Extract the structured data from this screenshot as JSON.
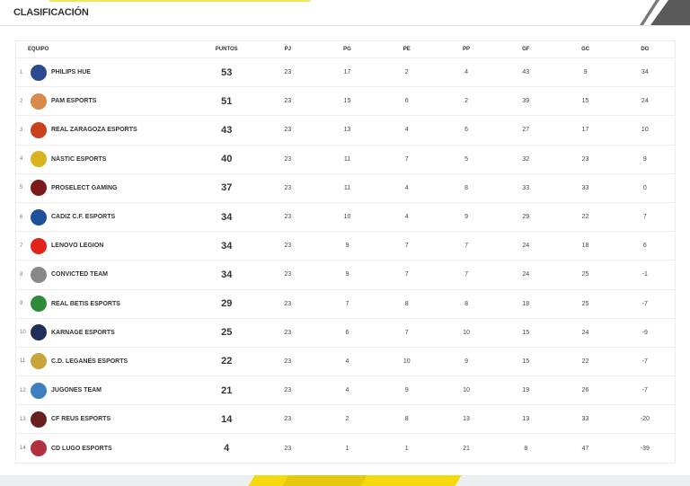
{
  "header": {
    "title": "CLASIFICACIÓN"
  },
  "columns": [
    "EQUIPO",
    "PUNTOS",
    "PJ",
    "PG",
    "PE",
    "PP",
    "GF",
    "GC",
    "DG"
  ],
  "rows": [
    {
      "pos": "1",
      "team": "PHILIPS HUE",
      "pts": "53",
      "pj": "23",
      "pg": "17",
      "pe": "2",
      "pp": "4",
      "gf": "43",
      "gc": "9",
      "dg": "34",
      "color": "#2a4b8d"
    },
    {
      "pos": "2",
      "team": "PAM ESPORTS",
      "pts": "51",
      "pj": "23",
      "pg": "15",
      "pe": "6",
      "pp": "2",
      "gf": "39",
      "gc": "15",
      "dg": "24",
      "color": "#d88a4a"
    },
    {
      "pos": "3",
      "team": "REAL ZARAGOZA ESPORTS",
      "pts": "43",
      "pj": "23",
      "pg": "13",
      "pe": "4",
      "pp": "6",
      "gf": "27",
      "gc": "17",
      "dg": "10",
      "color": "#c8401c"
    },
    {
      "pos": "4",
      "team": "NÀSTIC ESPORTS",
      "pts": "40",
      "pj": "23",
      "pg": "11",
      "pe": "7",
      "pp": "5",
      "gf": "32",
      "gc": "23",
      "dg": "9",
      "color": "#d9b21f"
    },
    {
      "pos": "5",
      "team": "PROSELECT GAMING",
      "pts": "37",
      "pj": "23",
      "pg": "11",
      "pe": "4",
      "pp": "8",
      "gf": "33",
      "gc": "33",
      "dg": "0",
      "color": "#7a1a1a"
    },
    {
      "pos": "6",
      "team": "CADIZ C.F. ESPORTS",
      "pts": "34",
      "pj": "23",
      "pg": "10",
      "pe": "4",
      "pp": "9",
      "gf": "29",
      "gc": "22",
      "dg": "7",
      "color": "#1d4f9a"
    },
    {
      "pos": "7",
      "team": "LENOVO LEGION",
      "pts": "34",
      "pj": "23",
      "pg": "9",
      "pe": "7",
      "pp": "7",
      "gf": "24",
      "gc": "18",
      "dg": "6",
      "color": "#e2231a"
    },
    {
      "pos": "8",
      "team": "CONVICTED TEAM",
      "pts": "34",
      "pj": "23",
      "pg": "9",
      "pe": "7",
      "pp": "7",
      "gf": "24",
      "gc": "25",
      "dg": "-1",
      "color": "#888888"
    },
    {
      "pos": "9",
      "team": "REAL BETIS ESPORTS",
      "pts": "29",
      "pj": "23",
      "pg": "7",
      "pe": "8",
      "pp": "8",
      "gf": "18",
      "gc": "25",
      "dg": "-7",
      "color": "#2e8b3a"
    },
    {
      "pos": "10",
      "team": "KARNAGE ESPORTS",
      "pts": "25",
      "pj": "23",
      "pg": "6",
      "pe": "7",
      "pp": "10",
      "gf": "15",
      "gc": "24",
      "dg": "-9",
      "color": "#1f2f5a"
    },
    {
      "pos": "11",
      "team": "C.D. LEGANÉS ESPORTS",
      "pts": "22",
      "pj": "23",
      "pg": "4",
      "pe": "10",
      "pp": "9",
      "gf": "15",
      "gc": "22",
      "dg": "-7",
      "color": "#c9a43a"
    },
    {
      "pos": "12",
      "team": "JUGONES TEAM",
      "pts": "21",
      "pj": "23",
      "pg": "4",
      "pe": "9",
      "pp": "10",
      "gf": "19",
      "gc": "26",
      "dg": "-7",
      "color": "#3d7fc1"
    },
    {
      "pos": "13",
      "team": "CF REUS ESPORTS",
      "pts": "14",
      "pj": "23",
      "pg": "2",
      "pe": "8",
      "pp": "13",
      "gf": "13",
      "gc": "33",
      "dg": "-20",
      "color": "#6a1f1f"
    },
    {
      "pos": "14",
      "team": "CD LUGO ESPORTS",
      "pts": "4",
      "pj": "23",
      "pg": "1",
      "pe": "1",
      "pp": "21",
      "gf": "8",
      "gc": "47",
      "dg": "-39",
      "color": "#b03040"
    }
  ]
}
